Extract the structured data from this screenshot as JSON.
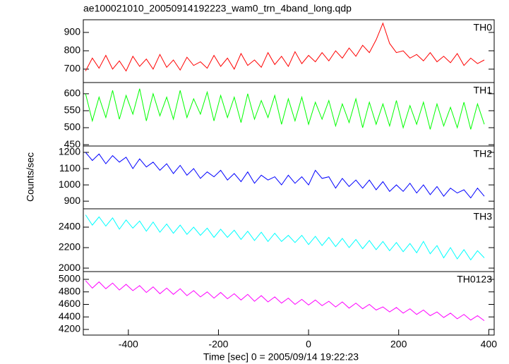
{
  "chart_data": [
    {
      "type": "line",
      "title": "ae100021010_20050914192223_wam0_trn_4band_long.qdp",
      "x": [
        -495,
        -480,
        -465,
        -450,
        -435,
        -420,
        -405,
        -390,
        -375,
        -360,
        -345,
        -330,
        -315,
        -300,
        -285,
        -270,
        -255,
        -240,
        -225,
        -210,
        -195,
        -180,
        -165,
        -150,
        -135,
        -120,
        -105,
        -90,
        -75,
        -60,
        -45,
        -30,
        -15,
        0,
        15,
        30,
        45,
        60,
        75,
        90,
        105,
        120,
        135,
        150,
        165,
        180,
        195,
        210,
        225,
        240,
        255,
        270,
        285,
        300,
        315,
        330,
        345,
        360,
        375,
        390
      ],
      "series": [
        {
          "name": "TH0",
          "color": "#ff0000",
          "values": [
            690,
            760,
            705,
            775,
            700,
            745,
            690,
            770,
            715,
            755,
            700,
            780,
            710,
            750,
            695,
            765,
            720,
            740,
            705,
            775,
            715,
            760,
            700,
            785,
            720,
            750,
            710,
            790,
            725,
            770,
            715,
            795,
            730,
            775,
            740,
            790,
            745,
            800,
            760,
            815,
            770,
            830,
            790,
            860,
            950,
            840,
            790,
            800,
            760,
            780,
            745,
            790,
            740,
            770,
            735,
            785,
            720,
            760,
            730,
            750
          ]
        }
      ],
      "xlim": [
        -500,
        412
      ],
      "ylim": [
        627,
        969
      ],
      "yticks": [
        700,
        800,
        900
      ]
    },
    {
      "type": "line",
      "x": [
        -495,
        -480,
        -465,
        -450,
        -435,
        -420,
        -405,
        -390,
        -375,
        -360,
        -345,
        -330,
        -315,
        -300,
        -285,
        -270,
        -255,
        -240,
        -225,
        -210,
        -195,
        -180,
        -165,
        -150,
        -135,
        -120,
        -105,
        -90,
        -75,
        -60,
        -45,
        -30,
        -15,
        0,
        15,
        30,
        45,
        60,
        75,
        90,
        105,
        120,
        135,
        150,
        165,
        180,
        195,
        210,
        225,
        240,
        255,
        270,
        285,
        300,
        315,
        330,
        345,
        360,
        375,
        390
      ],
      "series": [
        {
          "name": "TH1",
          "color": "#00ff00",
          "values": [
            600,
            520,
            590,
            530,
            610,
            525,
            595,
            540,
            615,
            520,
            600,
            535,
            590,
            525,
            610,
            530,
            585,
            540,
            605,
            520,
            595,
            530,
            590,
            515,
            600,
            525,
            580,
            530,
            595,
            510,
            585,
            520,
            590,
            510,
            575,
            525,
            580,
            505,
            570,
            515,
            585,
            500,
            575,
            510,
            570,
            505,
            580,
            500,
            565,
            510,
            575,
            495,
            570,
            505,
            560,
            500,
            575,
            495,
            570,
            510
          ]
        }
      ],
      "xlim": [
        -500,
        412
      ],
      "ylim": [
        446,
        633
      ],
      "yticks": [
        450,
        500,
        550,
        600
      ]
    },
    {
      "type": "line",
      "y_label": "Counts/sec",
      "x": [
        -495,
        -480,
        -465,
        -450,
        -435,
        -420,
        -405,
        -390,
        -375,
        -360,
        -345,
        -330,
        -315,
        -300,
        -285,
        -270,
        -255,
        -240,
        -225,
        -210,
        -195,
        -180,
        -165,
        -150,
        -135,
        -120,
        -105,
        -90,
        -75,
        -60,
        -45,
        -30,
        -15,
        0,
        15,
        30,
        45,
        60,
        75,
        90,
        105,
        120,
        135,
        150,
        165,
        180,
        195,
        210,
        225,
        240,
        255,
        270,
        285,
        300,
        315,
        330,
        345,
        360,
        375,
        390
      ],
      "series": [
        {
          "name": "TH2",
          "color": "#0000ff",
          "values": [
            1200,
            1150,
            1190,
            1130,
            1180,
            1140,
            1170,
            1100,
            1160,
            1110,
            1140,
            1090,
            1130,
            1070,
            1120,
            1060,
            1100,
            1040,
            1080,
            1050,
            1090,
            1030,
            1070,
            1020,
            1080,
            1010,
            1060,
            1030,
            1050,
            1000,
            1060,
            1010,
            1050,
            1000,
            1090,
            1040,
            1050,
            980,
            1040,
            990,
            1030,
            980,
            1030,
            970,
            1020,
            960,
            1000,
            960,
            1010,
            950,
            1000,
            940,
            990,
            930,
            980,
            950,
            970,
            920,
            980,
            930
          ]
        }
      ],
      "xlim": [
        -500,
        412
      ],
      "ylim": [
        853,
        1239
      ],
      "yticks": [
        900,
        1000,
        1100,
        1200
      ]
    },
    {
      "type": "line",
      "x": [
        -495,
        -480,
        -465,
        -450,
        -435,
        -420,
        -405,
        -390,
        -375,
        -360,
        -345,
        -330,
        -315,
        -300,
        -285,
        -270,
        -255,
        -240,
        -225,
        -210,
        -195,
        -180,
        -165,
        -150,
        -135,
        -120,
        -105,
        -90,
        -75,
        -60,
        -45,
        -30,
        -15,
        0,
        15,
        30,
        45,
        60,
        75,
        90,
        105,
        120,
        135,
        150,
        165,
        180,
        195,
        210,
        225,
        240,
        255,
        270,
        285,
        300,
        315,
        330,
        345,
        360,
        375,
        390
      ],
      "series": [
        {
          "name": "TH3",
          "color": "#00ffff",
          "values": [
            2520,
            2420,
            2500,
            2410,
            2490,
            2380,
            2470,
            2390,
            2460,
            2360,
            2450,
            2350,
            2430,
            2340,
            2420,
            2330,
            2400,
            2320,
            2390,
            2300,
            2380,
            2300,
            2370,
            2280,
            2360,
            2270,
            2350,
            2260,
            2340,
            2260,
            2320,
            2250,
            2320,
            2230,
            2310,
            2220,
            2300,
            2210,
            2290,
            2200,
            2280,
            2190,
            2270,
            2180,
            2260,
            2170,
            2250,
            2160,
            2240,
            2150,
            2260,
            2140,
            2220,
            2100,
            2200,
            2090,
            2180,
            2080,
            2170,
            2100
          ]
        }
      ],
      "xlim": [
        -500,
        412
      ],
      "ylim": [
        1966,
        2579
      ],
      "yticks": [
        2000,
        2200,
        2400
      ]
    },
    {
      "type": "line",
      "x_label": "Time [sec] 0 = 2005/09/14 19:22:23",
      "x": [
        -495,
        -480,
        -465,
        -450,
        -435,
        -420,
        -405,
        -390,
        -375,
        -360,
        -345,
        -330,
        -315,
        -300,
        -285,
        -270,
        -255,
        -240,
        -225,
        -210,
        -195,
        -180,
        -165,
        -150,
        -135,
        -120,
        -105,
        -90,
        -75,
        -60,
        -45,
        -30,
        -15,
        0,
        15,
        30,
        45,
        60,
        75,
        90,
        105,
        120,
        135,
        150,
        165,
        180,
        195,
        210,
        225,
        240,
        255,
        270,
        285,
        300,
        315,
        330,
        345,
        360,
        375,
        390
      ],
      "series": [
        {
          "name": "TH0123",
          "color": "#ff00ff",
          "values": [
            4980,
            4860,
            4960,
            4850,
            4940,
            4830,
            4920,
            4820,
            4900,
            4790,
            4880,
            4770,
            4860,
            4760,
            4850,
            4740,
            4820,
            4720,
            4800,
            4700,
            4790,
            4690,
            4770,
            4670,
            4760,
            4650,
            4740,
            4640,
            4720,
            4620,
            4700,
            4600,
            4680,
            4590,
            4670,
            4580,
            4650,
            4560,
            4640,
            4540,
            4620,
            4530,
            4600,
            4510,
            4560,
            4480,
            4550,
            4460,
            4530,
            4440,
            4510,
            4420,
            4480,
            4390,
            4460,
            4370,
            4440,
            4350,
            4420,
            4340
          ]
        }
      ],
      "xlim": [
        -500,
        412
      ],
      "ylim": [
        4110,
        5124
      ],
      "yticks": [
        4200,
        4400,
        4600,
        4800,
        5000
      ],
      "xticks": [
        -400,
        -200,
        0,
        200,
        400
      ]
    }
  ]
}
